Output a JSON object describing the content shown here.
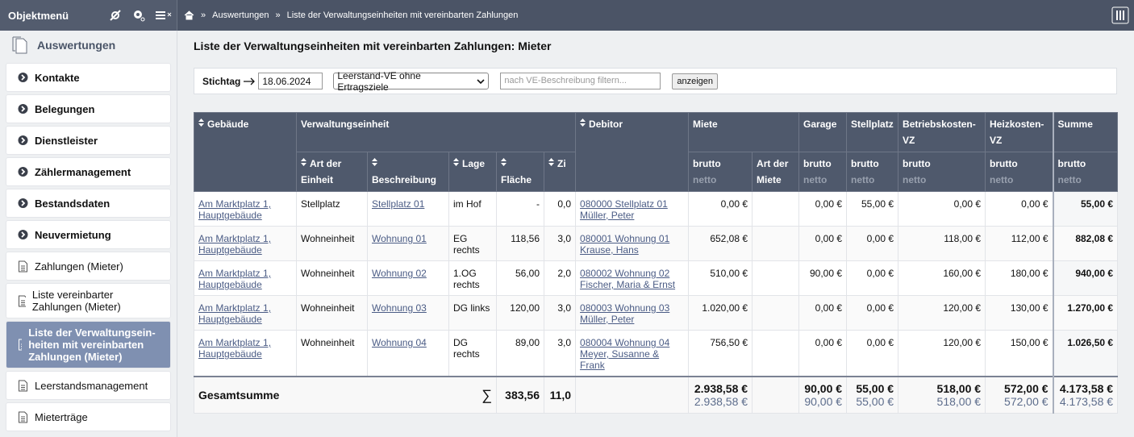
{
  "sidebar": {
    "title": "Objektmenü",
    "section": "Auswertungen",
    "groups": [
      "Kontakte",
      "Belegungen",
      "Dienstleister",
      "Zählermanagement",
      "Bestandsdaten",
      "Neuvermietung"
    ],
    "pages": [
      {
        "label": "Zahlungen (Mieter)"
      },
      {
        "label": "Liste vereinbarter Zahlungen (Mieter)"
      },
      {
        "label": "Liste der Verwaltungsein-heiten mit vereinbarten Zahlungen (Mieter)",
        "active": true
      },
      {
        "label": "Leerstandsmanagement"
      },
      {
        "label": "Mieterträge"
      }
    ]
  },
  "breadcrumb": {
    "separator": "»",
    "items": [
      "Auswertungen",
      "Liste der Verwaltungseinheiten mit vereinbarten Zahlungen"
    ]
  },
  "page_title": "Liste der Verwaltungseinheiten mit vereinbarten Zahlungen: Mieter",
  "filter": {
    "label": "Stichtag",
    "date": "18.06.2024",
    "select": "Leerstand-VE ohne Ertragsziele",
    "placeholder": "nach VE-Beschreibung filtern...",
    "button": "anzeigen"
  },
  "table": {
    "columns": {
      "gebaeude": "Gebäude",
      "verwaltungseinheit": "Verwaltungseinheit",
      "art": "Art der Einheit",
      "beschreibung": "Beschreibung",
      "lage": "Lage",
      "flaeche": "Fläche",
      "zi": "Zi",
      "debitor": "Debitor",
      "miete": "Miete",
      "art_miete": "Art der Miete",
      "garage": "Garage",
      "stellplatz": "Stellplatz",
      "betriebskosten": "Betriebskosten-VZ",
      "heizkosten": "Heizkosten-VZ",
      "summe": "Summe",
      "brutto": "brutto",
      "netto": "netto"
    },
    "rows": [
      {
        "gebaeude": "Am Marktplatz 1, Hauptgebäude",
        "art": "Stellplatz",
        "beschreibung": "Stellplatz 01",
        "lage": "im Hof",
        "flaeche": "-",
        "zi": "0,0",
        "debitor": [
          "080000 Stellplatz 01",
          "Müller, Peter"
        ],
        "miete": "0,00 €",
        "garage": "0,00 €",
        "stellplatz": "55,00 €",
        "betriebskosten": "0,00 €",
        "heizkosten": "0,00 €",
        "summe": "55,00 €"
      },
      {
        "gebaeude": "Am Marktplatz 1, Hauptgebäude",
        "art": "Wohneinheit",
        "beschreibung": "Wohnung 01",
        "lage": "EG rechts",
        "flaeche": "118,56",
        "zi": "3,0",
        "debitor": [
          "080001 Wohnung 01",
          "Krause, Hans"
        ],
        "miete": "652,08 €",
        "garage": "0,00 €",
        "stellplatz": "0,00 €",
        "betriebskosten": "118,00 €",
        "heizkosten": "112,00 €",
        "summe": "882,08 €"
      },
      {
        "gebaeude": "Am Marktplatz 1, Hauptgebäude",
        "art": "Wohneinheit",
        "beschreibung": "Wohnung 02",
        "lage": "1.OG rechts",
        "flaeche": "56,00",
        "zi": "2,0",
        "debitor": [
          "080002 Wohnung 02",
          "Fischer, Maria & Ernst"
        ],
        "miete": "510,00 €",
        "garage": "90,00 €",
        "stellplatz": "0,00 €",
        "betriebskosten": "160,00 €",
        "heizkosten": "180,00 €",
        "summe": "940,00 €"
      },
      {
        "gebaeude": "Am Marktplatz 1, Hauptgebäude",
        "art": "Wohneinheit",
        "beschreibung": "Wohnung 03",
        "lage": "DG links",
        "flaeche": "120,00",
        "zi": "3,0",
        "debitor": [
          "080003 Wohnung 03",
          "Müller, Peter"
        ],
        "miete": "1.020,00 €",
        "garage": "0,00 €",
        "stellplatz": "0,00 €",
        "betriebskosten": "120,00 €",
        "heizkosten": "130,00 €",
        "summe": "1.270,00 €"
      },
      {
        "gebaeude": "Am Marktplatz 1, Hauptgebäude",
        "art": "Wohneinheit",
        "beschreibung": "Wohnung 04",
        "lage": "DG rechts",
        "flaeche": "89,00",
        "zi": "3,0",
        "debitor": [
          "080004 Wohnung 04",
          "Meyer, Susanne & Frank"
        ],
        "miete": "756,50 €",
        "garage": "0,00 €",
        "stellplatz": "0,00 €",
        "betriebskosten": "120,00 €",
        "heizkosten": "150,00 €",
        "summe": "1.026,50 €"
      }
    ],
    "total": {
      "label": "Gesamtsumme",
      "sigma": "∑",
      "flaeche": "383,56",
      "zi": "11,0",
      "miete": [
        "2.938,58 €",
        "2.938,58 €"
      ],
      "garage": [
        "90,00 €",
        "90,00 €"
      ],
      "stellplatz": [
        "55,00 €",
        "55,00 €"
      ],
      "betriebskosten": [
        "518,00 €",
        "518,00 €"
      ],
      "heizkosten": [
        "572,00 €",
        "572,00 €"
      ],
      "summe": [
        "4.173,58 €",
        "4.173,58 €"
      ]
    }
  }
}
